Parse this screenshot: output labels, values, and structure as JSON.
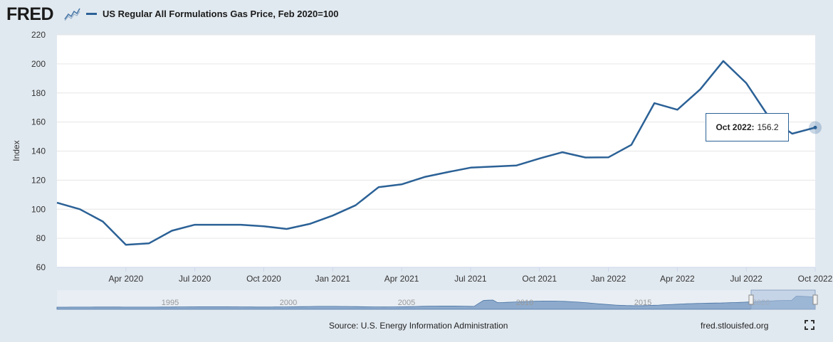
{
  "header": {
    "logo_text": "FRED",
    "logo_icon": "chart-line-icon",
    "legend_label": "US Regular All Formulations Gas Price, Feb 2020=100",
    "series_color": "#2b6196"
  },
  "footer": {
    "source": "Source: U.S. Energy Information Administration",
    "url": "fred.stlouisfed.org",
    "fullscreen_icon": "fullscreen-icon"
  },
  "tooltip": {
    "date": "Oct 2022:",
    "value": "156.2"
  },
  "navigator": {
    "tick_labels": [
      "1995",
      "2000",
      "2005",
      "2010",
      "2015",
      "2020"
    ]
  },
  "chart_data": {
    "type": "line",
    "ylabel": "Index",
    "xlabel": "",
    "ylim": [
      60,
      220
    ],
    "yticks": [
      60,
      80,
      100,
      120,
      140,
      160,
      180,
      200,
      220
    ],
    "x_tick_labels": [
      "Apr 2020",
      "Jul 2020",
      "Oct 2020",
      "Jan 2021",
      "Apr 2021",
      "Jul 2021",
      "Oct 2021",
      "Jan 2022",
      "Apr 2022",
      "Jul 2022",
      "Oct 2022"
    ],
    "grid": true,
    "series": [
      {
        "name": "US Regular All Formulations Gas Price, Feb 2020=100",
        "color": "#2b6196",
        "x": [
          "2020-01",
          "2020-02",
          "2020-03",
          "2020-04",
          "2020-05",
          "2020-06",
          "2020-07",
          "2020-08",
          "2020-09",
          "2020-10",
          "2020-11",
          "2020-12",
          "2021-01",
          "2021-02",
          "2021-03",
          "2021-04",
          "2021-05",
          "2021-06",
          "2021-07",
          "2021-08",
          "2021-09",
          "2021-10",
          "2021-11",
          "2021-12",
          "2022-01",
          "2022-02",
          "2022-03",
          "2022-04",
          "2022-05",
          "2022-06",
          "2022-07",
          "2022-08",
          "2022-09",
          "2022-10"
        ],
        "values": [
          104.5,
          100.0,
          91.5,
          75.5,
          76.5,
          85.2,
          89.3,
          89.3,
          89.3,
          88.3,
          86.4,
          89.9,
          95.6,
          102.7,
          115.2,
          117.1,
          122.2,
          125.5,
          128.6,
          129.4,
          130.1,
          134.9,
          139.2,
          135.6,
          135.7,
          144.3,
          173.0,
          168.5,
          182.5,
          202.0,
          186.8,
          163.0,
          152.0,
          156.2
        ]
      }
    ]
  }
}
